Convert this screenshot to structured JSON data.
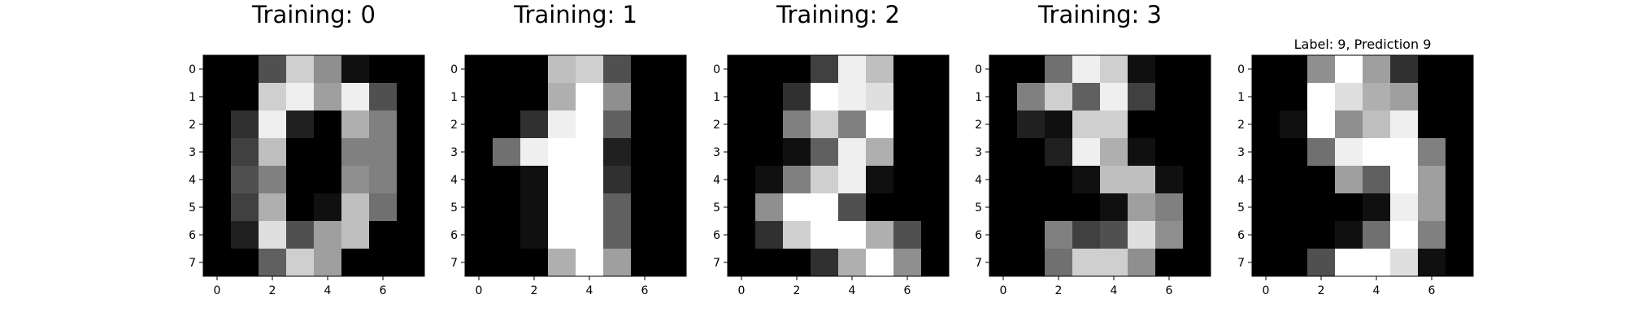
{
  "chart_data": [
    {
      "type": "heatmap",
      "colormap": "gray",
      "vmin": 0,
      "vmax": 16,
      "title": "Training: 0",
      "xticks": [
        "0",
        "2",
        "4",
        "6"
      ],
      "yticks": [
        "0",
        "1",
        "2",
        "3",
        "4",
        "5",
        "6",
        "7"
      ],
      "values": [
        [
          0,
          0,
          5,
          13,
          9,
          1,
          0,
          0
        ],
        [
          0,
          0,
          13,
          15,
          10,
          15,
          5,
          0
        ],
        [
          0,
          3,
          15,
          2,
          0,
          11,
          8,
          0
        ],
        [
          0,
          4,
          12,
          0,
          0,
          8,
          8,
          0
        ],
        [
          0,
          5,
          8,
          0,
          0,
          9,
          8,
          0
        ],
        [
          0,
          4,
          11,
          0,
          1,
          12,
          7,
          0
        ],
        [
          0,
          2,
          14,
          5,
          10,
          12,
          0,
          0
        ],
        [
          0,
          0,
          6,
          13,
          10,
          0,
          0,
          0
        ]
      ]
    },
    {
      "type": "heatmap",
      "colormap": "gray",
      "vmin": 0,
      "vmax": 16,
      "title": "Training: 1",
      "xticks": [
        "0",
        "2",
        "4",
        "6"
      ],
      "yticks": [
        "0",
        "1",
        "2",
        "3",
        "4",
        "5",
        "6",
        "7"
      ],
      "values": [
        [
          0,
          0,
          0,
          12,
          13,
          5,
          0,
          0
        ],
        [
          0,
          0,
          0,
          11,
          16,
          9,
          0,
          0
        ],
        [
          0,
          0,
          3,
          15,
          16,
          6,
          0,
          0
        ],
        [
          0,
          7,
          15,
          16,
          16,
          2,
          0,
          0
        ],
        [
          0,
          0,
          1,
          16,
          16,
          3,
          0,
          0
        ],
        [
          0,
          0,
          1,
          16,
          16,
          6,
          0,
          0
        ],
        [
          0,
          0,
          1,
          16,
          16,
          6,
          0,
          0
        ],
        [
          0,
          0,
          0,
          11,
          16,
          10,
          0,
          0
        ]
      ]
    },
    {
      "type": "heatmap",
      "colormap": "gray",
      "vmin": 0,
      "vmax": 16,
      "title": "Training: 2",
      "xticks": [
        "0",
        "2",
        "4",
        "6"
      ],
      "yticks": [
        "0",
        "1",
        "2",
        "3",
        "4",
        "5",
        "6",
        "7"
      ],
      "values": [
        [
          0,
          0,
          0,
          4,
          15,
          12,
          0,
          0
        ],
        [
          0,
          0,
          3,
          16,
          15,
          14,
          0,
          0
        ],
        [
          0,
          0,
          8,
          13,
          8,
          16,
          0,
          0
        ],
        [
          0,
          0,
          1,
          6,
          15,
          11,
          0,
          0
        ],
        [
          0,
          1,
          8,
          13,
          15,
          1,
          0,
          0
        ],
        [
          0,
          9,
          16,
          16,
          5,
          0,
          0,
          0
        ],
        [
          0,
          3,
          13,
          16,
          16,
          11,
          5,
          0
        ],
        [
          0,
          0,
          0,
          3,
          11,
          16,
          9,
          0
        ]
      ]
    },
    {
      "type": "heatmap",
      "colormap": "gray",
      "vmin": 0,
      "vmax": 16,
      "title": "Training: 3",
      "xticks": [
        "0",
        "2",
        "4",
        "6"
      ],
      "yticks": [
        "0",
        "1",
        "2",
        "3",
        "4",
        "5",
        "6",
        "7"
      ],
      "values": [
        [
          0,
          0,
          7,
          15,
          13,
          1,
          0,
          0
        ],
        [
          0,
          8,
          13,
          6,
          15,
          4,
          0,
          0
        ],
        [
          0,
          2,
          1,
          13,
          13,
          0,
          0,
          0
        ],
        [
          0,
          0,
          2,
          15,
          11,
          1,
          0,
          0
        ],
        [
          0,
          0,
          0,
          1,
          12,
          12,
          1,
          0
        ],
        [
          0,
          0,
          0,
          0,
          1,
          10,
          8,
          0
        ],
        [
          0,
          0,
          8,
          4,
          5,
          14,
          9,
          0
        ],
        [
          0,
          0,
          7,
          13,
          13,
          9,
          0,
          0
        ]
      ]
    },
    {
      "type": "heatmap",
      "colormap": "gray",
      "vmin": 0,
      "vmax": 16,
      "title": "Label: 9, Prediction 9",
      "xticks": [
        "0",
        "2",
        "4",
        "6"
      ],
      "yticks": [
        "0",
        "1",
        "2",
        "3",
        "4",
        "5",
        "6",
        "7"
      ],
      "values": [
        [
          0,
          0,
          9,
          16,
          10,
          3,
          0,
          0
        ],
        [
          0,
          0,
          16,
          14,
          11,
          10,
          0,
          0
        ],
        [
          0,
          1,
          16,
          9,
          12,
          15,
          0,
          0
        ],
        [
          0,
          0,
          7,
          15,
          16,
          16,
          8,
          0
        ],
        [
          0,
          0,
          0,
          10,
          6,
          16,
          10,
          0
        ],
        [
          0,
          0,
          0,
          0,
          1,
          15,
          10,
          0
        ],
        [
          0,
          0,
          0,
          1,
          7,
          16,
          8,
          0
        ],
        [
          0,
          0,
          5,
          16,
          16,
          14,
          1,
          0
        ]
      ]
    }
  ]
}
